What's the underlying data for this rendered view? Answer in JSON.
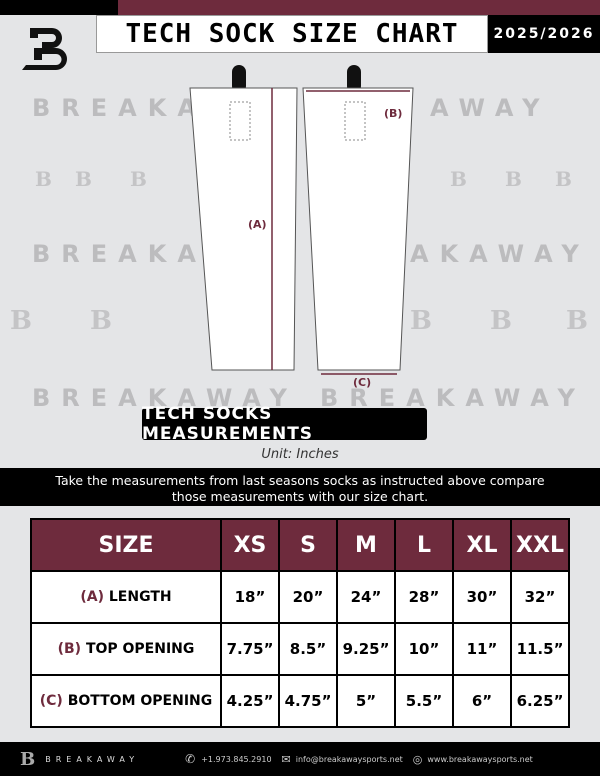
{
  "header": {
    "title": "TECH SOCK SIZE CHART",
    "season": "2025/2026"
  },
  "watermark": {
    "text": "BREAKAWAY",
    "logo_letter": "B"
  },
  "diagram": {
    "label_a": "(A)",
    "label_b": "(B)",
    "label_c": "(C)"
  },
  "section_title": "TECH SOCKS MEASUREMENTS",
  "unit": "Unit: Inches",
  "instructions": "Take the measurements from last seasons socks as instructed above compare those measurements  with our size chart.",
  "table": {
    "headers": [
      "SIZE",
      "XS",
      "S",
      "M",
      "L",
      "XL",
      "XXL"
    ],
    "rows": [
      {
        "letter": "(A)",
        "label": "LENGTH",
        "values": [
          "18”",
          "20”",
          "24”",
          "28”",
          "30”",
          "32”"
        ]
      },
      {
        "letter": "(B)",
        "label": "TOP OPENING",
        "values": [
          "7.75”",
          "8.5”",
          "9.25”",
          "10”",
          "11”",
          "11.5”"
        ]
      },
      {
        "letter": "(C)",
        "label": "BOTTOM OPENING",
        "values": [
          "4.25”",
          "4.75”",
          "5”",
          "5.5”",
          "6”",
          "6.25”"
        ]
      }
    ]
  },
  "footer": {
    "brand": "BREAKAWAY",
    "phone": "+1.973.845.2910",
    "email": "info@breakawaysports.net",
    "website": "www.breakawaysports.net"
  },
  "colors": {
    "maroon": "#6e2b3d",
    "black": "#000000",
    "background": "#e4e5e7"
  }
}
